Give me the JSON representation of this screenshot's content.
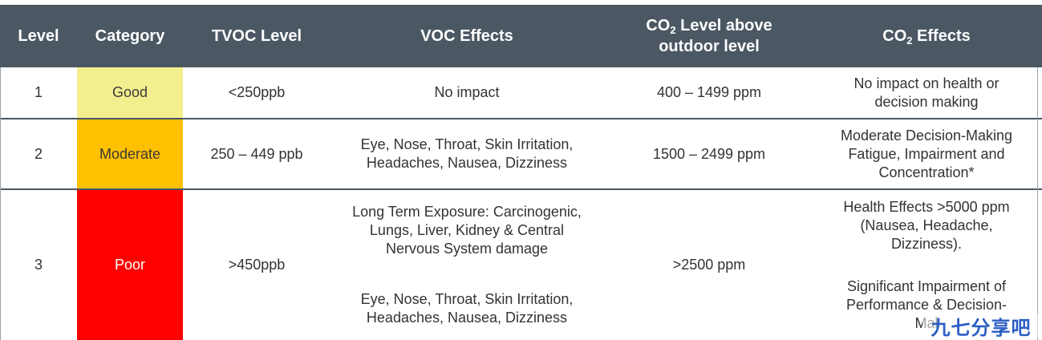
{
  "header": {
    "level": "Level",
    "category": "Category",
    "tvoc": "TVOC Level",
    "voc_effects": "VOC Effects",
    "co2_level_prefix": "CO",
    "co2_level_sub": "2",
    "co2_level_suffix_1": " Level above",
    "co2_level_suffix_2": "outdoor level",
    "co2_effects_prefix": "CO",
    "co2_effects_sub": "2",
    "co2_effects_suffix": " Effects"
  },
  "rows": [
    {
      "level": "1",
      "category": "Good",
      "category_color": "#f3ee8e",
      "tvoc": "<250ppb",
      "voc_effects": [
        "No impact"
      ],
      "co2_level": "400 – 1499 ppm",
      "co2_effects": [
        "No impact on health or",
        "decision making"
      ]
    },
    {
      "level": "2",
      "category": "Moderate",
      "category_color": "#ffc000",
      "tvoc": "250 – 449 ppb",
      "voc_effects": [
        "Eye, Nose, Throat, Skin Irritation,",
        "Headaches, Nausea, Dizziness"
      ],
      "co2_level": "1500 – 2499 ppm",
      "co2_effects": [
        "Moderate Decision-Making",
        "Fatigue, Impairment and",
        "Concentration*"
      ]
    },
    {
      "level": "3",
      "category": "Poor",
      "category_color": "#ff0000",
      "tvoc": ">450ppb",
      "voc_effects_a": [
        "Long Term Exposure: Carcinogenic,",
        "Lungs, Liver, Kidney & Central",
        "Nervous System damage"
      ],
      "voc_effects_b": [
        "Eye, Nose, Throat, Skin Irritation,",
        "Headaches, Nausea, Dizziness"
      ],
      "co2_level": ">2500 ppm",
      "co2_effects_a": [
        "Health Effects >5000 ppm",
        "(Nausea, Headache,",
        "Dizziness)."
      ],
      "co2_effects_b": [
        "Significant Impairment of",
        "Performance & Decision-",
        "Mal"
      ]
    }
  ],
  "watermark": "九七分享吧"
}
